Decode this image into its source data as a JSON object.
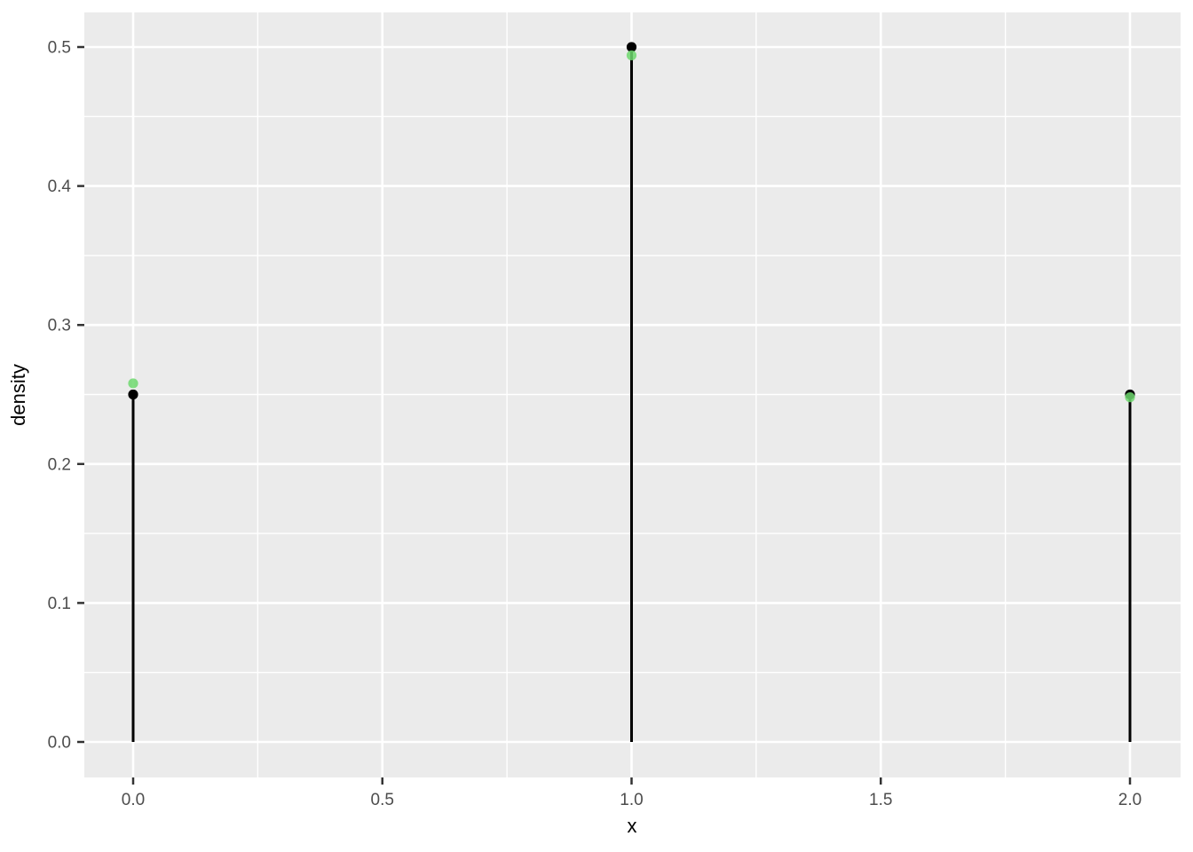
{
  "chart_data": {
    "type": "stem",
    "title": "",
    "xlabel": "x",
    "ylabel": "density",
    "x": [
      0,
      1,
      2
    ],
    "series": [
      {
        "name": "black_points",
        "color": "#000000",
        "opacity": 1.0,
        "values": [
          0.25,
          0.5,
          0.25
        ]
      },
      {
        "name": "green_points",
        "color": "#6ED86E",
        "opacity": 0.85,
        "values": [
          0.258,
          0.494,
          0.248
        ]
      }
    ],
    "stem_color": "#000000",
    "stem_heights": [
      0.25,
      0.5,
      0.25
    ],
    "x_ticks": [
      "0.0",
      "0.5",
      "1.0",
      "1.5",
      "2.0"
    ],
    "x_tick_values": [
      0,
      0.5,
      1,
      1.5,
      2
    ],
    "y_ticks": [
      "0.0",
      "0.1",
      "0.2",
      "0.3",
      "0.4",
      "0.5"
    ],
    "y_tick_values": [
      0,
      0.1,
      0.2,
      0.3,
      0.4,
      0.5
    ],
    "x_minor_values": [
      0.25,
      0.75,
      1.25,
      1.75
    ],
    "y_minor_values": [
      0.05,
      0.15,
      0.25,
      0.35,
      0.45
    ],
    "xlim": [
      -0.1,
      2.1
    ],
    "ylim": [
      -0.0256,
      0.5256
    ],
    "grid": true,
    "legend": "none",
    "panel_bg": "#EBEBEB",
    "grid_color": "#FFFFFF",
    "tick_mark_color": "#333333",
    "tick_label_color": "#4d4d4d"
  }
}
